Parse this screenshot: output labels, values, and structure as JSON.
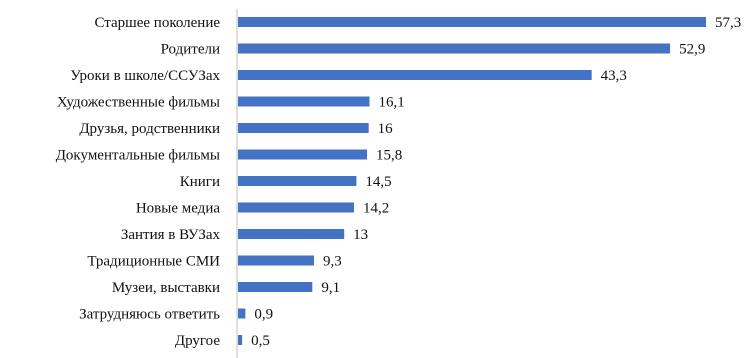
{
  "chart_data": {
    "type": "bar",
    "orientation": "horizontal",
    "title": "",
    "xlabel": "",
    "ylabel": "",
    "xlim": [
      0,
      57.3
    ],
    "grid": false,
    "legend": "none",
    "bar_color": "#4472C4",
    "categories": [
      "Старшее поколение",
      "Родители",
      "Уроки в школе/ССУЗах",
      "Художественные фильмы",
      "Друзья, родственники",
      "Документальные фильмы",
      "Книги",
      "Новые медиа",
      "Зантия в ВУЗах",
      "Традиционные СМИ",
      "Музеи, выставки",
      "Затрудняюсь ответить",
      "Другое"
    ],
    "values": [
      57.3,
      52.9,
      43.3,
      16.1,
      16,
      15.8,
      14.5,
      14.2,
      13,
      9.3,
      9.1,
      0.9,
      0.5
    ],
    "value_labels": [
      "57,3",
      "52,9",
      "43,3",
      "16,1",
      "16",
      "15,8",
      "14,5",
      "14,2",
      "13",
      "9,3",
      "9,1",
      "0,9",
      "0,5"
    ]
  }
}
